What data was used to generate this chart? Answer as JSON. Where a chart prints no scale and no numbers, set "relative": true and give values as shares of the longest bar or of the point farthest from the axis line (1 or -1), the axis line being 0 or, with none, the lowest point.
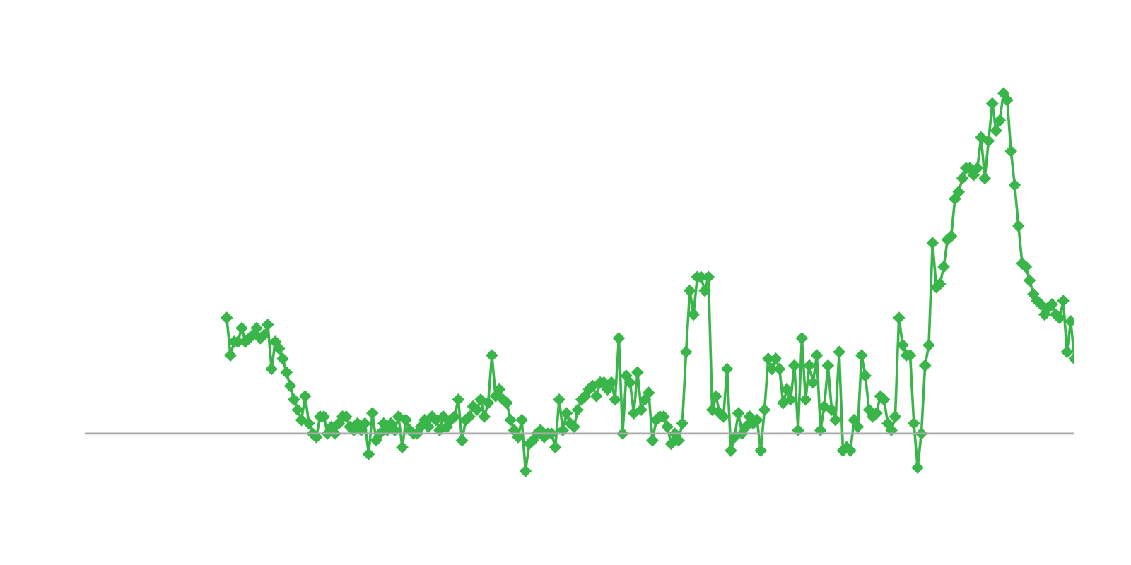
{
  "chart_data": {
    "type": "line",
    "relative": true,
    "marker": "diamond",
    "line_style": "solid",
    "legend": false,
    "categories": [
      null,
      null,
      null,
      null,
      null,
      null,
      null,
      null,
      null,
      null,
      null,
      null,
      null,
      null,
      null,
      null,
      null,
      null,
      null,
      null,
      null,
      null,
      null,
      null,
      null,
      null,
      null,
      null,
      null,
      null,
      null,
      null,
      null,
      null,
      null,
      null,
      null,
      null,
      null,
      null,
      null,
      null,
      null,
      null,
      null,
      null,
      null,
      null,
      null,
      null,
      null,
      null,
      null,
      null,
      null,
      null,
      null,
      null,
      null,
      null,
      null,
      null,
      null,
      null,
      null,
      null,
      null,
      null,
      null,
      null,
      null,
      null,
      null,
      null,
      null,
      null,
      null,
      null,
      null,
      null,
      null,
      null,
      null,
      null,
      null,
      null,
      null,
      null,
      null,
      null,
      null,
      null,
      null,
      null,
      null,
      null,
      null,
      null,
      null,
      null,
      null,
      null,
      null,
      null,
      null,
      null,
      null,
      null,
      null,
      null,
      null,
      null,
      null,
      null,
      null,
      null,
      null,
      null,
      null,
      null,
      null,
      null,
      null,
      null,
      null,
      null,
      null,
      null,
      null,
      null,
      null,
      null,
      null,
      null,
      null,
      null,
      null,
      null,
      null,
      null,
      null,
      null,
      null,
      null,
      null,
      null,
      null,
      null,
      null,
      null,
      null,
      null,
      null,
      null,
      null,
      null,
      null,
      null,
      null,
      null,
      null,
      null,
      null,
      null,
      null,
      null,
      null,
      null,
      null,
      null,
      null,
      null,
      null,
      null,
      null,
      null,
      null,
      null,
      null,
      null,
      null,
      null,
      null,
      null,
      null,
      null,
      null,
      null,
      null,
      null,
      null,
      null,
      null,
      null,
      null,
      null,
      null,
      null,
      null,
      null,
      null,
      null,
      null,
      null,
      null,
      null,
      null,
      null,
      null,
      null,
      null,
      null,
      null,
      null,
      null,
      null,
      null,
      null,
      null,
      null,
      null,
      null,
      null,
      null,
      null,
      null,
      null,
      null,
      null,
      null,
      null,
      null,
      null,
      null,
      null,
      null,
      null,
      null,
      null,
      null,
      null,
      null,
      null,
      null,
      null,
      null,
      null,
      null,
      null,
      null,
      null,
      null,
      null,
      null,
      null,
      null,
      null,
      null,
      null,
      null,
      null,
      null,
      null,
      null,
      null,
      null
    ],
    "series": [
      {
        "color": "#3ab54a",
        "values": [
          null,
          null,
          null,
          null,
          null,
          null,
          null,
          null,
          null,
          null,
          null,
          null,
          null,
          null,
          null,
          null,
          null,
          null,
          null,
          null,
          null,
          null,
          null,
          null,
          null,
          null,
          null,
          null,
          null,
          null,
          null,
          null,
          null,
          null,
          null,
          null,
          null,
          null,
          0.34,
          0.23,
          0.27,
          0.27,
          0.31,
          0.27,
          0.28,
          0.29,
          0.31,
          0.28,
          0.29,
          0.32,
          0.19,
          0.27,
          0.25,
          0.22,
          0.18,
          0.14,
          0.1,
          0.07,
          0.04,
          0.11,
          0.03,
          0.0,
          -0.01,
          0.05,
          0.05,
          0.0,
          0.02,
          0.0,
          0.03,
          0.05,
          0.05,
          0.02,
          0.01,
          0.03,
          0.01,
          0.03,
          -0.06,
          0.06,
          -0.02,
          0.0,
          0.03,
          0.01,
          0.03,
          0.01,
          0.05,
          -0.04,
          0.04,
          0.01,
          0.0,
          0.0,
          0.02,
          0.04,
          0.02,
          0.05,
          0.04,
          0.01,
          0.05,
          0.02,
          0.04,
          0.05,
          0.1,
          -0.02,
          0.04,
          0.05,
          0.08,
          0.07,
          0.1,
          0.05,
          0.09,
          0.23,
          0.11,
          0.13,
          0.1,
          0.09,
          0.04,
          0.01,
          -0.01,
          0.04,
          -0.11,
          -0.03,
          -0.02,
          0.0,
          0.01,
          -0.01,
          0.0,
          0.0,
          -0.04,
          0.1,
          0.01,
          0.06,
          0.03,
          0.02,
          0.07,
          0.1,
          0.11,
          0.13,
          0.14,
          0.11,
          0.15,
          0.15,
          0.13,
          0.15,
          0.1,
          0.28,
          0.0,
          0.17,
          0.15,
          0.06,
          0.18,
          0.07,
          0.1,
          0.12,
          -0.02,
          0.04,
          0.05,
          0.05,
          0.02,
          -0.03,
          0.0,
          -0.02,
          0.03,
          0.24,
          0.42,
          0.35,
          0.46,
          0.46,
          0.42,
          0.46,
          0.07,
          0.11,
          0.06,
          0.05,
          0.19,
          -0.05,
          -0.01,
          0.06,
          0.0,
          0.02,
          0.05,
          0.03,
          0.04,
          -0.05,
          0.07,
          0.22,
          0.19,
          0.22,
          0.19,
          0.09,
          0.13,
          0.1,
          0.2,
          0.01,
          0.28,
          0.1,
          0.2,
          0.15,
          0.23,
          0.01,
          0.08,
          0.2,
          0.07,
          0.04,
          0.24,
          -0.05,
          -0.04,
          -0.05,
          0.04,
          0.02,
          0.23,
          0.17,
          0.07,
          0.05,
          0.06,
          0.11,
          0.1,
          0.03,
          0.01,
          0.05,
          0.34,
          0.26,
          0.23,
          0.23,
          0.03,
          -0.1,
          0.0,
          0.2,
          0.26,
          0.56,
          0.43,
          0.44,
          0.49,
          0.57,
          0.58,
          0.69,
          0.71,
          0.75,
          0.78,
          0.78,
          0.76,
          0.78,
          0.87,
          0.75,
          0.86,
          0.97,
          0.89,
          0.92,
          1,
          0.98,
          0.83,
          0.73,
          0.61,
          0.5,
          0.49,
          0.45,
          0.41,
          0.39,
          0.38,
          0.35,
          0.37,
          0.38,
          0.35,
          0.34,
          0.39,
          0.24,
          0.33,
          0.22
        ]
      }
    ]
  }
}
